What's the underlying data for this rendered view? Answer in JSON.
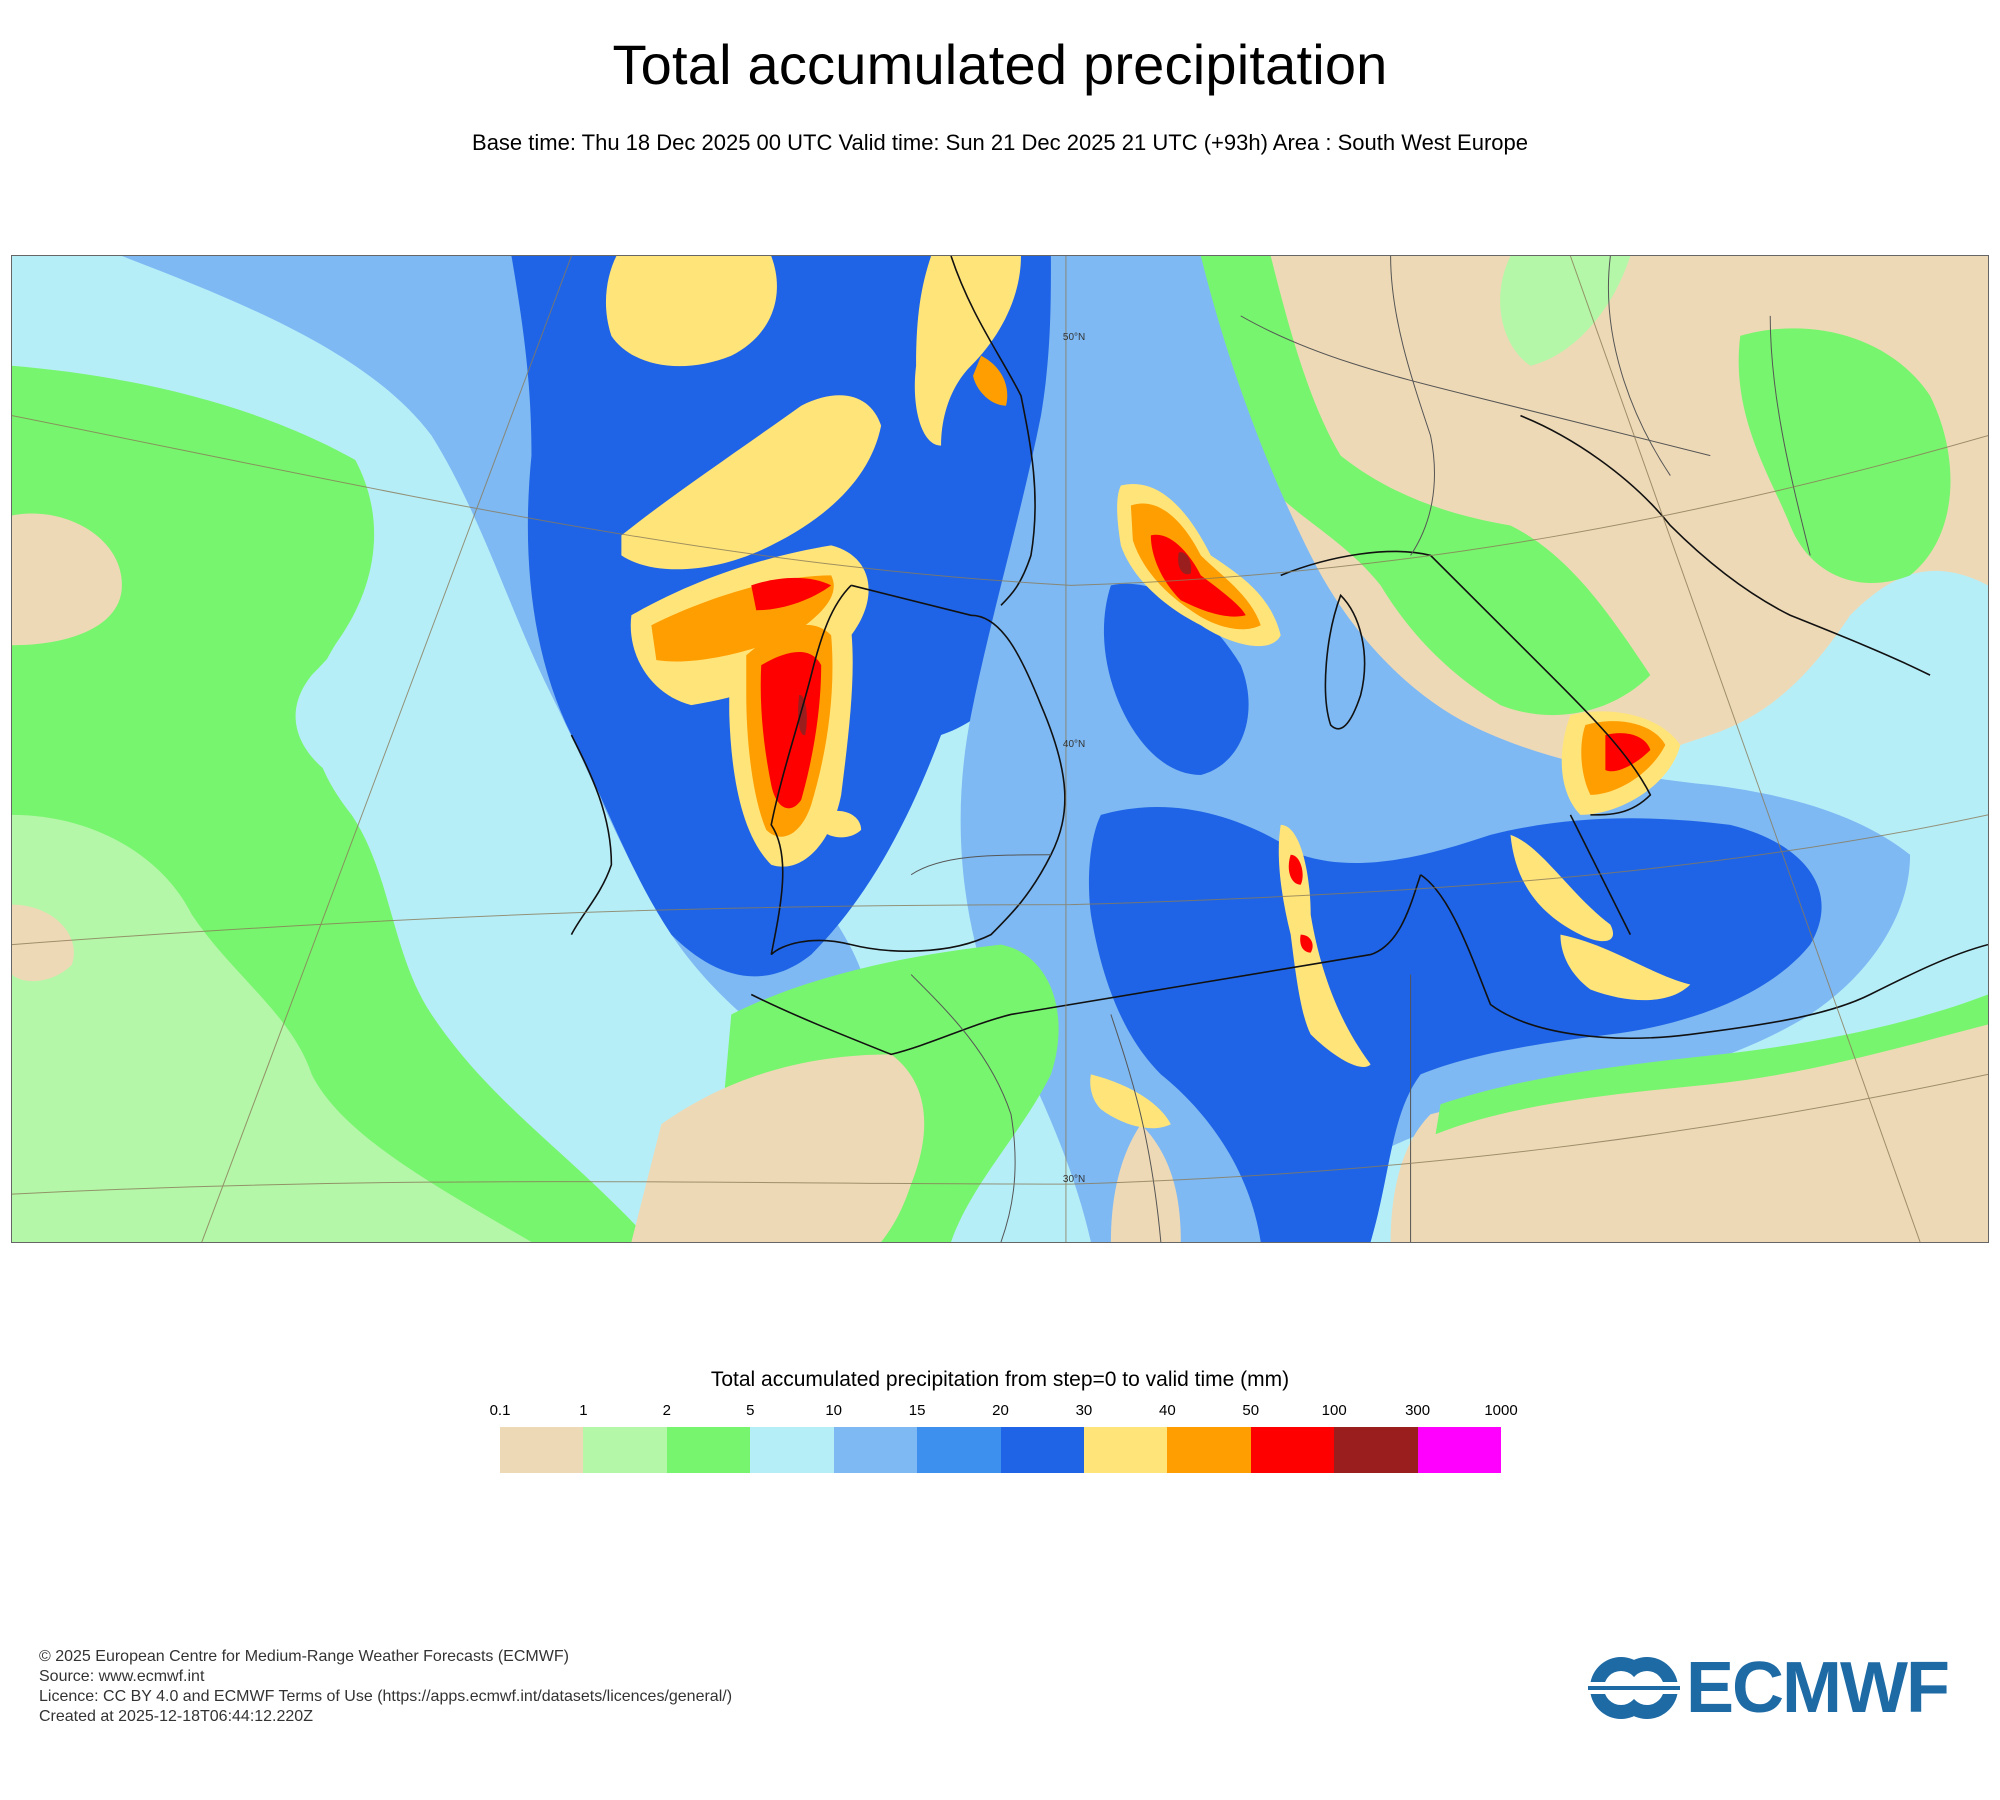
{
  "header": {
    "title": "Total accumulated precipitation",
    "subtitle": "Base time: Thu 18 Dec 2025 00 UTC Valid time: Sun 21 Dec 2025 21 UTC (+93h) Area : South West Europe"
  },
  "map": {
    "area": "South West Europe",
    "graticule_labels": [
      "50°N",
      "40°N",
      "30°N"
    ]
  },
  "legend": {
    "title": "Total accumulated precipitation from step=0 to valid time (mm)",
    "ticks": [
      "0.1",
      "1",
      "2",
      "5",
      "10",
      "15",
      "20",
      "30",
      "40",
      "50",
      "100",
      "300",
      "1000"
    ],
    "colors": [
      "#eed9b6",
      "#b4f7a8",
      "#78f56e",
      "#b6eef8",
      "#7eb9f3",
      "#3e90ef",
      "#1f64e6",
      "#ffe47a",
      "#ff9e00",
      "#ff0000",
      "#9b1e1e",
      "#ff00ff"
    ]
  },
  "footer": {
    "lines": [
      "© 2025 European Centre for Medium-Range Weather Forecasts (ECMWF)",
      "Source: www.ecmwf.int",
      "Licence: CC BY 4.0 and ECMWF Terms of Use (https://apps.ecmwf.int/datasets/licences/general/)",
      "Created at 2025-12-18T06:44:12.220Z"
    ]
  },
  "logo": {
    "text": "ECMWF",
    "color": "#1d6aa5"
  }
}
